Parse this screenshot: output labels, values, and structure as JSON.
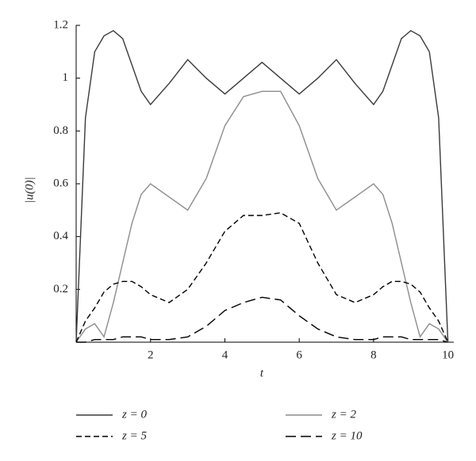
{
  "chart_data": {
    "type": "line",
    "x_label": "t",
    "y_label": "|u(0)|",
    "x": [
      0,
      0.25,
      0.5,
      0.75,
      1,
      1.25,
      1.5,
      1.75,
      2,
      2.5,
      3,
      3.5,
      4,
      4.5,
      5,
      5.5,
      6,
      6.5,
      7,
      7.5,
      8,
      8.25,
      8.5,
      8.75,
      9,
      9.25,
      9.5,
      9.75,
      10
    ],
    "series": [
      {
        "name": "z = 0",
        "color": "#3a3a3a",
        "linestyle": "solid",
        "values": [
          0,
          0.85,
          1.1,
          1.16,
          1.18,
          1.15,
          1.05,
          0.95,
          0.9,
          0.98,
          1.07,
          1.0,
          0.94,
          1.0,
          1.06,
          1.0,
          0.94,
          1.0,
          1.07,
          0.98,
          0.9,
          0.95,
          1.05,
          1.15,
          1.18,
          1.16,
          1.1,
          0.85,
          0
        ]
      },
      {
        "name": "z = 2",
        "color": "#8c8c8c",
        "linestyle": "solid",
        "values": [
          0,
          0.05,
          0.07,
          0.02,
          0.15,
          0.3,
          0.45,
          0.56,
          0.6,
          0.55,
          0.5,
          0.62,
          0.82,
          0.93,
          0.95,
          0.95,
          0.82,
          0.62,
          0.5,
          0.55,
          0.6,
          0.56,
          0.45,
          0.3,
          0.15,
          0.02,
          0.07,
          0.05,
          0
        ]
      },
      {
        "name": "z = 5",
        "color": "#000000",
        "linestyle": "short-dash",
        "values": [
          0,
          0.08,
          0.13,
          0.19,
          0.22,
          0.23,
          0.23,
          0.21,
          0.18,
          0.15,
          0.2,
          0.3,
          0.42,
          0.48,
          0.48,
          0.49,
          0.45,
          0.3,
          0.18,
          0.15,
          0.18,
          0.21,
          0.23,
          0.23,
          0.22,
          0.19,
          0.13,
          0.08,
          0
        ]
      },
      {
        "name": "z = 10",
        "color": "#000000",
        "linestyle": "long-dash",
        "values": [
          0,
          0,
          0.01,
          0.01,
          0.01,
          0.02,
          0.02,
          0.02,
          0.01,
          0.01,
          0.02,
          0.06,
          0.12,
          0.15,
          0.17,
          0.16,
          0.1,
          0.05,
          0.02,
          0.01,
          0.01,
          0.02,
          0.02,
          0.02,
          0.01,
          0.01,
          0.01,
          0.01,
          0
        ]
      }
    ],
    "xlim": [
      0,
      10.2
    ],
    "ylim": [
      0,
      1.2
    ],
    "xticks": [
      2,
      4,
      6,
      8,
      10
    ],
    "yticks": [
      0.2,
      0.4,
      0.6,
      0.8,
      1,
      1.2
    ]
  }
}
